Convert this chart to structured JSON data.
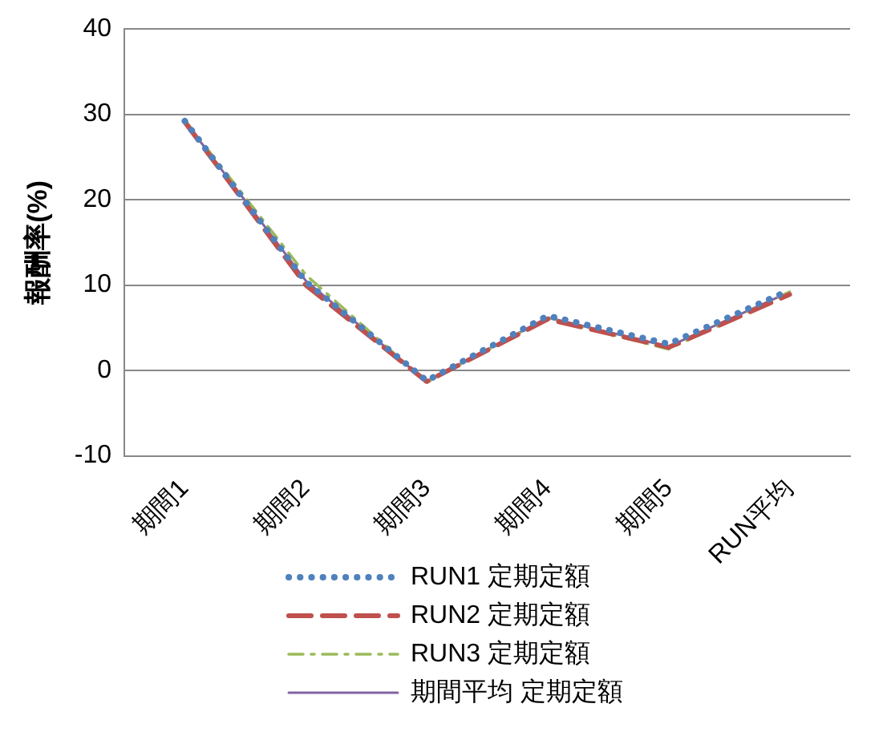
{
  "chart_data": {
    "type": "line",
    "ylabel": "報酬率(%)",
    "categories": [
      "期間1",
      "期間2",
      "期間3",
      "期間4",
      "期間5",
      "RUN平均"
    ],
    "series": [
      {
        "name": "RUN1 定期定額",
        "color": "#4f81bd",
        "line_style": "dotted",
        "values": [
          29.2,
          10.4,
          -1.2,
          6.4,
          3.1,
          9.4
        ]
      },
      {
        "name": "RUN2 定期定額",
        "color": "#c0504d",
        "line_style": "dashed",
        "values": [
          29.1,
          10.0,
          -1.3,
          6.0,
          2.7,
          8.9
        ]
      },
      {
        "name": "RUN3 定期定額",
        "color": "#9bbb59",
        "line_style": "dashdot",
        "values": [
          29.3,
          11.2,
          -1.4,
          6.1,
          2.5,
          9.2
        ]
      },
      {
        "name": "期間平均 定期定額",
        "color": "#8064a2",
        "line_style": "solid",
        "values": [
          29.2,
          10.5,
          -1.3,
          6.2,
          2.8,
          9.2
        ]
      }
    ],
    "ylim": [
      -10,
      40
    ],
    "yticks": [
      -10,
      0,
      10,
      20,
      30,
      40
    ],
    "grid": "y",
    "legend": "bottom",
    "marker": "none"
  }
}
